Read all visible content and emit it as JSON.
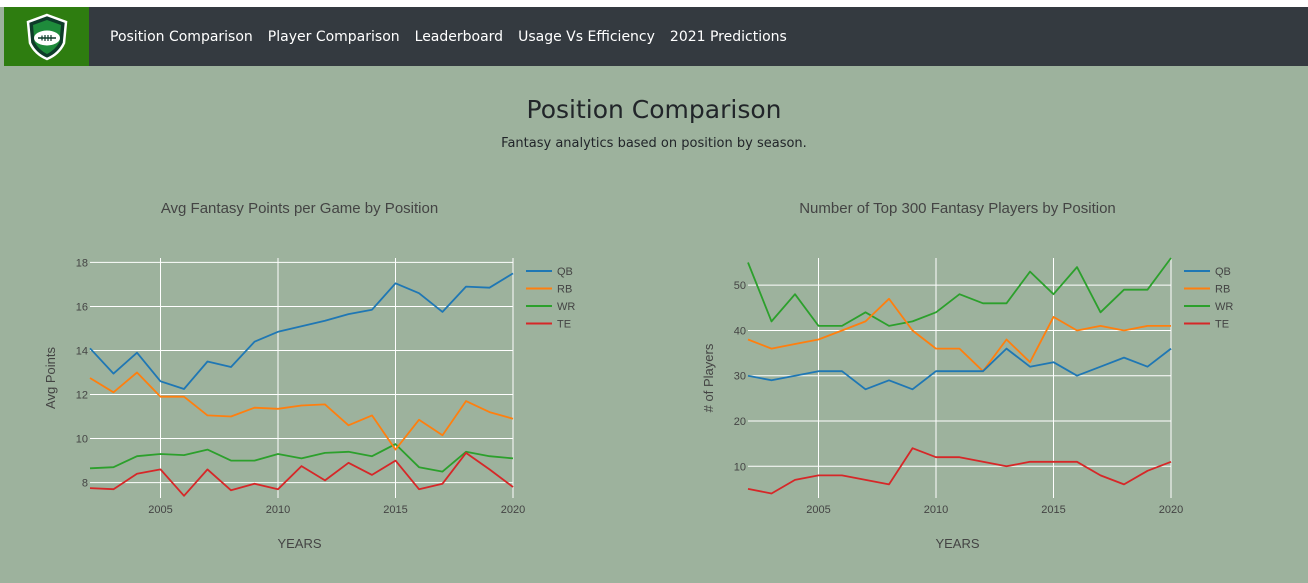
{
  "nav": {
    "logo_icon": "football-shield-icon",
    "items": [
      {
        "label": "Position Comparison"
      },
      {
        "label": "Player Comparison"
      },
      {
        "label": "Leaderboard"
      },
      {
        "label": "Usage Vs Efficiency"
      },
      {
        "label": "2021 Predictions"
      }
    ]
  },
  "header": {
    "title": "Position Comparison",
    "subtitle": "Fantasy analytics based on position by season."
  },
  "colors": {
    "background": "#9db29d",
    "navbar": "#343a40",
    "logo_bg": "#2e7d10",
    "QB": "#1f77b4",
    "RB": "#ff7f0e",
    "WR": "#2ca02c",
    "TE": "#d62728"
  },
  "chart_data": [
    {
      "type": "line",
      "title": "Avg Fantasy Points per Game by Position",
      "xlabel": "YEARS",
      "ylabel": "Avg Points",
      "xlim": [
        2002,
        2020
      ],
      "ylim": [
        7.3,
        18.2
      ],
      "xticks": [
        2005,
        2010,
        2015,
        2020
      ],
      "yticks": [
        8,
        10,
        12,
        14,
        16,
        18
      ],
      "grid": true,
      "legend": "top-right",
      "x": [
        2002,
        2003,
        2004,
        2005,
        2006,
        2007,
        2008,
        2009,
        2010,
        2011,
        2012,
        2013,
        2014,
        2015,
        2016,
        2017,
        2018,
        2019,
        2020
      ],
      "series": [
        {
          "name": "QB",
          "values": [
            14.1,
            12.95,
            13.9,
            12.6,
            12.25,
            13.5,
            13.25,
            14.4,
            14.85,
            15.1,
            15.35,
            15.65,
            15.85,
            17.05,
            16.6,
            15.75,
            16.9,
            16.85,
            17.5
          ]
        },
        {
          "name": "RB",
          "values": [
            12.75,
            12.1,
            13.0,
            11.9,
            11.9,
            11.05,
            11.0,
            11.4,
            11.35,
            11.5,
            11.55,
            10.6,
            11.05,
            9.5,
            10.85,
            10.15,
            11.7,
            11.2,
            10.9
          ]
        },
        {
          "name": "WR",
          "values": [
            8.65,
            8.7,
            9.2,
            9.3,
            9.25,
            9.5,
            9.0,
            9.0,
            9.3,
            9.1,
            9.35,
            9.4,
            9.2,
            9.75,
            8.7,
            8.5,
            9.4,
            9.2,
            9.1
          ]
        },
        {
          "name": "TE",
          "values": [
            7.75,
            7.7,
            8.4,
            8.6,
            7.4,
            8.6,
            7.65,
            7.95,
            7.7,
            8.75,
            8.1,
            8.9,
            8.35,
            9.0,
            7.7,
            7.95,
            9.35,
            8.6,
            7.8
          ]
        }
      ]
    },
    {
      "type": "line",
      "title": "Number of Top 300 Fantasy Players by Position",
      "xlabel": "YEARS",
      "ylabel": "# of Players",
      "xlim": [
        2002,
        2020
      ],
      "ylim": [
        3,
        56
      ],
      "xticks": [
        2005,
        2010,
        2015,
        2020
      ],
      "yticks": [
        10,
        20,
        30,
        40,
        50
      ],
      "grid": true,
      "legend": "top-right",
      "x": [
        2002,
        2003,
        2004,
        2005,
        2006,
        2007,
        2008,
        2009,
        2010,
        2011,
        2012,
        2013,
        2014,
        2015,
        2016,
        2017,
        2018,
        2019,
        2020
      ],
      "series": [
        {
          "name": "QB",
          "values": [
            30,
            29,
            30,
            31,
            31,
            27,
            29,
            27,
            31,
            31,
            31,
            36,
            32,
            33,
            30,
            32,
            34,
            32,
            36
          ]
        },
        {
          "name": "RB",
          "values": [
            38,
            36,
            37,
            38,
            40,
            42,
            47,
            40,
            36,
            36,
            31,
            38,
            33,
            43,
            40,
            41,
            40,
            41,
            41
          ]
        },
        {
          "name": "WR",
          "values": [
            55,
            42,
            48,
            41,
            41,
            44,
            41,
            42,
            44,
            48,
            46,
            46,
            53,
            48,
            54,
            44,
            49,
            49,
            56
          ]
        },
        {
          "name": "TE",
          "values": [
            5,
            4,
            7,
            8,
            8,
            7,
            6,
            14,
            12,
            12,
            11,
            10,
            11,
            11,
            11,
            8,
            6,
            9,
            11
          ]
        }
      ]
    }
  ]
}
